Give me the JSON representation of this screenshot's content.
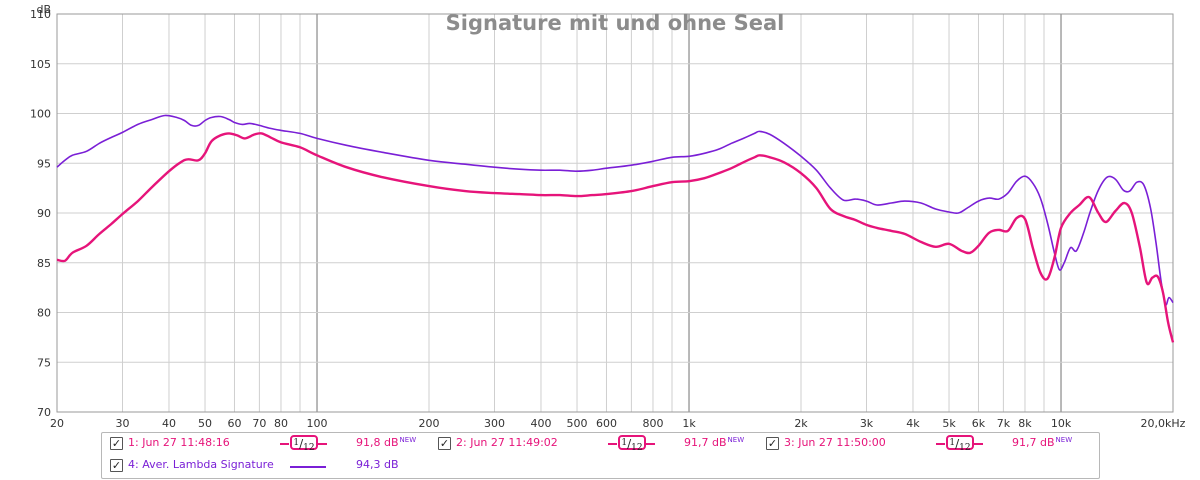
{
  "chart_data": {
    "type": "line",
    "title": "Signature mit und ohne Seal",
    "ylabel": "dB",
    "xlabel": "",
    "x_scale": "log",
    "xlim": [
      20,
      20000
    ],
    "ylim": [
      70,
      110
    ],
    "grid": true,
    "x_tick_labels": [
      {
        "value": 20,
        "label": "20"
      },
      {
        "value": 30,
        "label": "30"
      },
      {
        "value": 40,
        "label": "40"
      },
      {
        "value": 50,
        "label": "50"
      },
      {
        "value": 60,
        "label": "60"
      },
      {
        "value": 70,
        "label": "70"
      },
      {
        "value": 80,
        "label": "80"
      },
      {
        "value": 100,
        "label": "100"
      },
      {
        "value": 200,
        "label": "200"
      },
      {
        "value": 300,
        "label": "300"
      },
      {
        "value": 400,
        "label": "400"
      },
      {
        "value": 500,
        "label": "500"
      },
      {
        "value": 600,
        "label": "600"
      },
      {
        "value": 800,
        "label": "800"
      },
      {
        "value": 1000,
        "label": "1k"
      },
      {
        "value": 2000,
        "label": "2k"
      },
      {
        "value": 3000,
        "label": "3k"
      },
      {
        "value": 4000,
        "label": "4k"
      },
      {
        "value": 5000,
        "label": "5k"
      },
      {
        "value": 6000,
        "label": "6k"
      },
      {
        "value": 7000,
        "label": "7k"
      },
      {
        "value": 8000,
        "label": "8k"
      },
      {
        "value": 10000,
        "label": "10k"
      },
      {
        "value": 20000,
        "label": "20,0kHz"
      }
    ],
    "y_tick_labels": [
      "70",
      "75",
      "80",
      "85",
      "90",
      "95",
      "100",
      "105",
      "110"
    ],
    "series": [
      {
        "name": "4: Aver. Lambda Signature",
        "color": "#7a1fd6",
        "points": [
          [
            20,
            94.6
          ],
          [
            21,
            95.3
          ],
          [
            22,
            95.8
          ],
          [
            24,
            96.2
          ],
          [
            26,
            97.0
          ],
          [
            28,
            97.6
          ],
          [
            30,
            98.1
          ],
          [
            33,
            98.9
          ],
          [
            36,
            99.4
          ],
          [
            39,
            99.8
          ],
          [
            42,
            99.6
          ],
          [
            44,
            99.3
          ],
          [
            46,
            98.8
          ],
          [
            48,
            98.8
          ],
          [
            50,
            99.3
          ],
          [
            52,
            99.6
          ],
          [
            55,
            99.7
          ],
          [
            58,
            99.4
          ],
          [
            60,
            99.1
          ],
          [
            63,
            98.9
          ],
          [
            66,
            99.0
          ],
          [
            70,
            98.8
          ],
          [
            75,
            98.5
          ],
          [
            80,
            98.3
          ],
          [
            90,
            98.0
          ],
          [
            100,
            97.5
          ],
          [
            120,
            96.8
          ],
          [
            150,
            96.1
          ],
          [
            200,
            95.3
          ],
          [
            250,
            94.9
          ],
          [
            300,
            94.6
          ],
          [
            350,
            94.4
          ],
          [
            400,
            94.3
          ],
          [
            450,
            94.3
          ],
          [
            500,
            94.2
          ],
          [
            550,
            94.3
          ],
          [
            600,
            94.5
          ],
          [
            700,
            94.8
          ],
          [
            800,
            95.2
          ],
          [
            900,
            95.6
          ],
          [
            1000,
            95.7
          ],
          [
            1100,
            96.0
          ],
          [
            1200,
            96.4
          ],
          [
            1300,
            97.0
          ],
          [
            1400,
            97.5
          ],
          [
            1500,
            98.0
          ],
          [
            1550,
            98.2
          ],
          [
            1650,
            97.9
          ],
          [
            1800,
            97.0
          ],
          [
            2000,
            95.7
          ],
          [
            2200,
            94.3
          ],
          [
            2400,
            92.5
          ],
          [
            2600,
            91.3
          ],
          [
            2800,
            91.4
          ],
          [
            3000,
            91.2
          ],
          [
            3200,
            90.8
          ],
          [
            3500,
            91.0
          ],
          [
            3800,
            91.2
          ],
          [
            4200,
            91.0
          ],
          [
            4600,
            90.4
          ],
          [
            5000,
            90.1
          ],
          [
            5300,
            90.0
          ],
          [
            5600,
            90.5
          ],
          [
            6000,
            91.2
          ],
          [
            6400,
            91.5
          ],
          [
            6800,
            91.4
          ],
          [
            7200,
            92.0
          ],
          [
            7600,
            93.2
          ],
          [
            8000,
            93.7
          ],
          [
            8400,
            93.0
          ],
          [
            8800,
            91.5
          ],
          [
            9200,
            89.0
          ],
          [
            9600,
            86.0
          ],
          [
            9900,
            84.3
          ],
          [
            10200,
            85.0
          ],
          [
            10600,
            86.5
          ],
          [
            11000,
            86.2
          ],
          [
            11500,
            88.0
          ],
          [
            12000,
            90.2
          ],
          [
            12600,
            92.3
          ],
          [
            13300,
            93.6
          ],
          [
            14000,
            93.4
          ],
          [
            14700,
            92.3
          ],
          [
            15300,
            92.2
          ],
          [
            16000,
            93.1
          ],
          [
            16700,
            92.8
          ],
          [
            17400,
            90.5
          ],
          [
            18000,
            87.0
          ],
          [
            18600,
            83.0
          ],
          [
            19100,
            80.8
          ],
          [
            19500,
            81.5
          ],
          [
            20000,
            81.0
          ]
        ]
      },
      {
        "name": "1: Jun 27 11:48:16",
        "color": "#e6147a",
        "points": [
          [
            20,
            85.3
          ],
          [
            21,
            85.2
          ],
          [
            22,
            86.0
          ],
          [
            24,
            86.7
          ],
          [
            26,
            87.9
          ],
          [
            28,
            88.9
          ],
          [
            30,
            89.9
          ],
          [
            33,
            91.2
          ],
          [
            36,
            92.6
          ],
          [
            40,
            94.2
          ],
          [
            43,
            95.1
          ],
          [
            45,
            95.4
          ],
          [
            48,
            95.3
          ],
          [
            50,
            96.0
          ],
          [
            52,
            97.2
          ],
          [
            55,
            97.8
          ],
          [
            58,
            98.0
          ],
          [
            61,
            97.8
          ],
          [
            64,
            97.5
          ],
          [
            68,
            97.9
          ],
          [
            71,
            98.0
          ],
          [
            75,
            97.6
          ],
          [
            80,
            97.1
          ],
          [
            90,
            96.6
          ],
          [
            100,
            95.8
          ],
          [
            120,
            94.6
          ],
          [
            150,
            93.6
          ],
          [
            200,
            92.7
          ],
          [
            250,
            92.2
          ],
          [
            300,
            92.0
          ],
          [
            350,
            91.9
          ],
          [
            400,
            91.8
          ],
          [
            450,
            91.8
          ],
          [
            500,
            91.7
          ],
          [
            550,
            91.8
          ],
          [
            600,
            91.9
          ],
          [
            700,
            92.2
          ],
          [
            800,
            92.7
          ],
          [
            900,
            93.1
          ],
          [
            1000,
            93.2
          ],
          [
            1100,
            93.5
          ],
          [
            1200,
            94.0
          ],
          [
            1300,
            94.5
          ],
          [
            1400,
            95.1
          ],
          [
            1500,
            95.6
          ],
          [
            1550,
            95.8
          ],
          [
            1650,
            95.6
          ],
          [
            1800,
            95.1
          ],
          [
            2000,
            94.0
          ],
          [
            2200,
            92.5
          ],
          [
            2400,
            90.4
          ],
          [
            2600,
            89.7
          ],
          [
            2800,
            89.3
          ],
          [
            3000,
            88.8
          ],
          [
            3200,
            88.5
          ],
          [
            3500,
            88.2
          ],
          [
            3800,
            87.9
          ],
          [
            4200,
            87.1
          ],
          [
            4600,
            86.6
          ],
          [
            5000,
            86.9
          ],
          [
            5400,
            86.2
          ],
          [
            5700,
            86.0
          ],
          [
            6000,
            86.7
          ],
          [
            6400,
            88.0
          ],
          [
            6800,
            88.3
          ],
          [
            7200,
            88.2
          ],
          [
            7600,
            89.5
          ],
          [
            8000,
            89.4
          ],
          [
            8400,
            86.5
          ],
          [
            8800,
            84.0
          ],
          [
            9200,
            83.4
          ],
          [
            9600,
            85.5
          ],
          [
            10000,
            88.5
          ],
          [
            10600,
            90.0
          ],
          [
            11200,
            90.8
          ],
          [
            11900,
            91.6
          ],
          [
            12600,
            90.0
          ],
          [
            13200,
            89.1
          ],
          [
            14000,
            90.2
          ],
          [
            14800,
            91.0
          ],
          [
            15500,
            90.0
          ],
          [
            16300,
            86.5
          ],
          [
            17000,
            83.0
          ],
          [
            17600,
            83.5
          ],
          [
            18200,
            83.6
          ],
          [
            18800,
            82.0
          ],
          [
            19400,
            79.0
          ],
          [
            20000,
            77.0
          ]
        ]
      }
    ]
  },
  "legend": {
    "items": [
      {
        "label": "1: Jun 27 11:48:16",
        "color": "#e6147a",
        "smoothing_num": "1",
        "smoothing_den": "12",
        "level": "91,8 dB",
        "badge": "NEW"
      },
      {
        "label": "2: Jun 27 11:49:02",
        "color": "#e6147a",
        "smoothing_num": "1",
        "smoothing_den": "12",
        "level": "91,7 dB",
        "badge": "NEW"
      },
      {
        "label": "3: Jun 27 11:50:00",
        "color": "#e6147a",
        "smoothing_num": "1",
        "smoothing_den": "12",
        "level": "91,7 dB",
        "badge": "NEW"
      },
      {
        "label": "4: Aver. Lambda Signature",
        "color": "#7a1fd6",
        "level": "94,3 dB"
      }
    ],
    "checkmark": "✓"
  }
}
